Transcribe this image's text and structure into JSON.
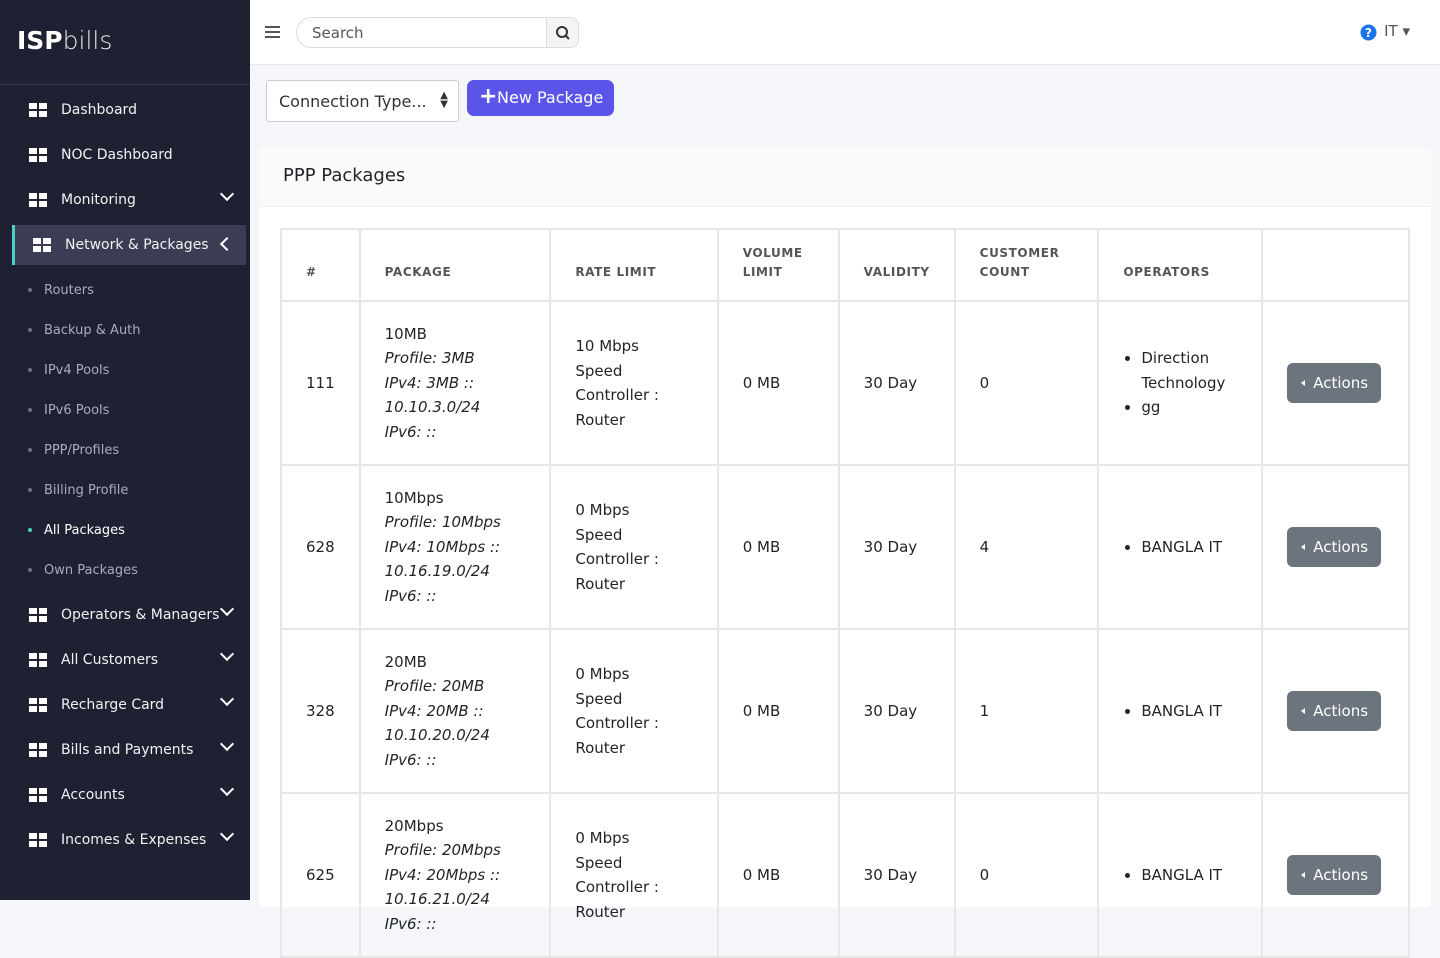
{
  "brand": {
    "bold": "ISP",
    "light": "bills"
  },
  "topbar": {
    "search_placeholder": "Search",
    "language": "IT"
  },
  "sidebar": {
    "items": [
      {
        "label": "Dashboard"
      },
      {
        "label": "NOC Dashboard"
      },
      {
        "label": "Monitoring",
        "expandable": true
      },
      {
        "label": "Network & Packages",
        "expandable": true,
        "open": true,
        "children": [
          {
            "label": "Routers"
          },
          {
            "label": "Backup & Auth"
          },
          {
            "label": "IPv4 Pools"
          },
          {
            "label": "IPv6 Pools"
          },
          {
            "label": "PPP/Profiles"
          },
          {
            "label": "Billing Profile"
          },
          {
            "label": "All Packages",
            "active": true
          },
          {
            "label": "Own Packages"
          }
        ]
      },
      {
        "label": "Operators & Managers",
        "expandable": true
      },
      {
        "label": "All Customers",
        "expandable": true
      },
      {
        "label": "Recharge Card",
        "expandable": true
      },
      {
        "label": "Bills and Payments",
        "expandable": true
      },
      {
        "label": "Accounts",
        "expandable": true
      },
      {
        "label": "Incomes & Expenses",
        "expandable": true
      }
    ]
  },
  "toolbar": {
    "select": "Connection Type...",
    "button": "New Package"
  },
  "card": {
    "title": "PPP Packages"
  },
  "table": {
    "headers": [
      "#",
      "PACKAGE",
      "RATE LIMIT",
      "VOLUME LIMIT",
      "VALIDITY",
      "CUSTOMER COUNT",
      "OPERATORS"
    ],
    "rows": [
      {
        "id": "111",
        "package": "10MB",
        "profile": "Profile: 3MB",
        "ipv4": "IPv4: 3MB :: 10.10.3.0/24",
        "ipv6": "IPv6: ::",
        "rate_limit": "10 Mbps Speed Controller : Router",
        "volume": "0 MB",
        "validity": "30 Day",
        "customers": "0",
        "operators": [
          "Direction Technology",
          "gg"
        ],
        "action": "Actions"
      },
      {
        "id": "628",
        "package": "10Mbps",
        "profile": "Profile: 10Mbps",
        "ipv4": "IPv4: 10Mbps :: 10.16.19.0/24",
        "ipv6": "IPv6: ::",
        "rate_limit": "0 Mbps Speed Controller : Router",
        "volume": "0 MB",
        "validity": "30 Day",
        "customers": "4",
        "operators": [
          "BANGLA IT"
        ],
        "action": "Actions"
      },
      {
        "id": "328",
        "package": "20MB",
        "profile": "Profile: 20MB",
        "ipv4": "IPv4: 20MB :: 10.10.20.0/24",
        "ipv6": "IPv6: ::",
        "rate_limit": "0 Mbps Speed Controller : Router",
        "volume": "0 MB",
        "validity": "30 Day",
        "customers": "1",
        "operators": [
          "BANGLA IT"
        ],
        "action": "Actions"
      },
      {
        "id": "625",
        "package": "20Mbps",
        "profile": "Profile: 20Mbps",
        "ipv4": "IPv4: 20Mbps :: 10.16.21.0/24",
        "ipv6": "IPv6: ::",
        "rate_limit": "0 Mbps Speed Controller : Router",
        "volume": "0 MB",
        "validity": "30 Day",
        "customers": "0",
        "operators": [
          "BANGLA IT"
        ],
        "action": "Actions"
      }
    ]
  }
}
